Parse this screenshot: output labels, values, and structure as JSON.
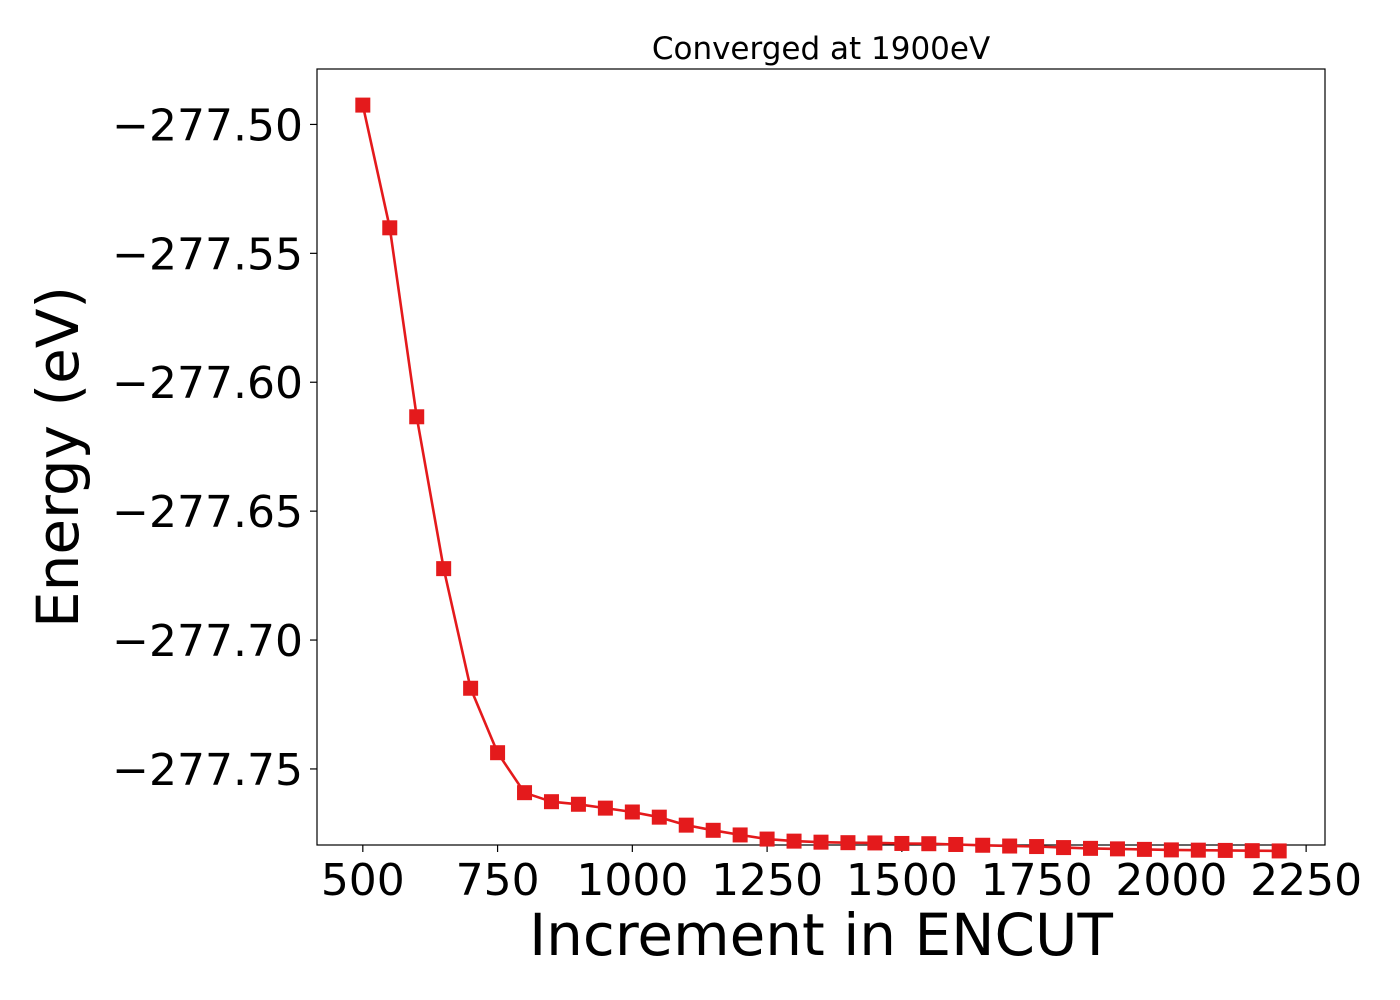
{
  "chart_data": {
    "type": "line",
    "title": "Converged at 1900eV",
    "xlabel": "Increment in ENCUT",
    "ylabel": "Energy (eV)",
    "xlim": [
      415,
      2285
    ],
    "ylim": [
      -277.7795,
      -277.4785
    ],
    "xticks": [
      500,
      750,
      1000,
      1250,
      1500,
      1750,
      2000,
      2250
    ],
    "xtick_labels": [
      "500",
      "750",
      "1000",
      "1250",
      "1500",
      "1750",
      "2000",
      "2250"
    ],
    "yticks": [
      -277.5,
      -277.55,
      -277.6,
      -277.65,
      -277.7,
      -277.75
    ],
    "ytick_labels": [
      "−277.50",
      "−277.55",
      "−277.60",
      "−277.65",
      "−277.70",
      "−277.75"
    ],
    "grid": false,
    "series": [
      {
        "color": "#e41a1c",
        "marker": "square",
        "x": [
          500,
          550,
          600,
          650,
          700,
          750,
          800,
          850,
          900,
          950,
          1000,
          1050,
          1100,
          1150,
          1200,
          1250,
          1300,
          1350,
          1400,
          1450,
          1500,
          1550,
          1600,
          1650,
          1700,
          1750,
          1800,
          1850,
          1900,
          1950,
          2000,
          2050,
          2100,
          2150,
          2200
        ],
        "y": [
          -277.4925,
          -277.5401,
          -277.6134,
          -277.6723,
          -277.7187,
          -277.7437,
          -277.7592,
          -277.7627,
          -277.7637,
          -277.7652,
          -277.7667,
          -277.7687,
          -277.7718,
          -277.7738,
          -277.7756,
          -277.7772,
          -277.778,
          -277.7784,
          -277.7786,
          -277.7787,
          -277.7789,
          -277.779,
          -277.7793,
          -277.7796,
          -277.7799,
          -277.7801,
          -277.7805,
          -277.7808,
          -277.781,
          -277.7812,
          -277.7814,
          -277.7815,
          -277.7816,
          -277.7817,
          -277.7818
        ]
      }
    ]
  }
}
